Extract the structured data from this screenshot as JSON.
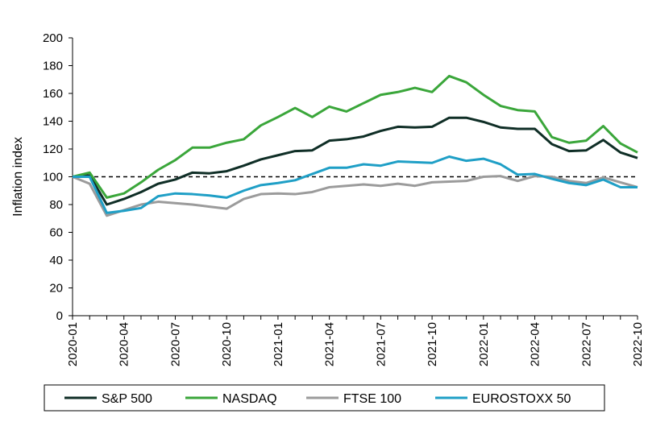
{
  "chart_data": {
    "type": "line",
    "title": "",
    "xlabel": "",
    "ylabel": "Inflation index",
    "ylim": [
      0,
      200
    ],
    "y_ticks": [
      0,
      20,
      40,
      60,
      80,
      100,
      120,
      140,
      160,
      180,
      200
    ],
    "x": [
      "2020-01",
      "2020-02",
      "2020-03",
      "2020-04",
      "2020-05",
      "2020-06",
      "2020-07",
      "2020-08",
      "2020-09",
      "2020-10",
      "2020-11",
      "2020-12",
      "2021-01",
      "2021-02",
      "2021-03",
      "2021-04",
      "2021-05",
      "2021-06",
      "2021-07",
      "2021-08",
      "2021-09",
      "2021-10",
      "2021-11",
      "2021-12",
      "2022-01",
      "2022-02",
      "2022-03",
      "2022-04",
      "2022-05",
      "2022-06",
      "2022-07",
      "2022-08",
      "2022-09",
      "2022-10"
    ],
    "x_tick_labels": [
      "2020-01",
      "2020-04",
      "2020-07",
      "2020-10",
      "2021-01",
      "2021-04",
      "2021-07",
      "2021-10",
      "2022-01",
      "2022-04",
      "2022-07",
      "2022-10"
    ],
    "reference_line": {
      "y": 100,
      "style": "dashed",
      "color": "#000000"
    },
    "grid": false,
    "legend_position": "bottom",
    "series": [
      {
        "name": "S&P 500",
        "color": "#0f2e26",
        "values": [
          100,
          101,
          80,
          84,
          89,
          95,
          98,
          103,
          102.5,
          104,
          108,
          112.5,
          115.5,
          118.5,
          119,
          126,
          127,
          129,
          133,
          136,
          135.5,
          136,
          142.5,
          142.5,
          139.5,
          135.5,
          134.5,
          134.5,
          123.5,
          118.5,
          119,
          126.5,
          117.5,
          113.5
        ]
      },
      {
        "name": "NASDAQ",
        "color": "#3aa63a",
        "values": [
          100,
          103,
          85,
          88,
          96,
          105,
          112,
          121,
          121,
          124.5,
          127,
          137,
          143,
          149.5,
          143,
          150.5,
          147,
          153,
          159,
          161,
          164,
          161,
          172.5,
          168,
          159,
          151,
          148,
          147,
          128.5,
          124.5,
          126,
          136.5,
          124,
          117.5
        ]
      },
      {
        "name": "FTSE 100",
        "color": "#9b9b9b",
        "values": [
          100,
          95,
          72,
          76,
          80,
          82,
          81,
          80,
          78.5,
          77,
          84,
          87.5,
          88,
          87.5,
          89,
          92.5,
          93.5,
          94.5,
          93.5,
          95,
          93.5,
          96,
          96.5,
          97,
          100,
          100.5,
          97,
          100.5,
          100,
          97,
          95.5,
          99.5,
          96,
          92.5
        ]
      },
      {
        "name": "EUROSTOXX 50",
        "color": "#1f9fc6",
        "values": [
          100,
          100,
          74,
          75.5,
          77.5,
          86,
          88,
          87.5,
          86.5,
          85,
          90,
          94,
          95.5,
          97.5,
          102,
          106.5,
          106.5,
          109,
          108,
          111,
          110.5,
          110,
          114.5,
          111.5,
          113,
          109,
          101.5,
          102,
          98.5,
          95.5,
          94,
          98,
          92.5,
          92.5
        ]
      }
    ]
  }
}
